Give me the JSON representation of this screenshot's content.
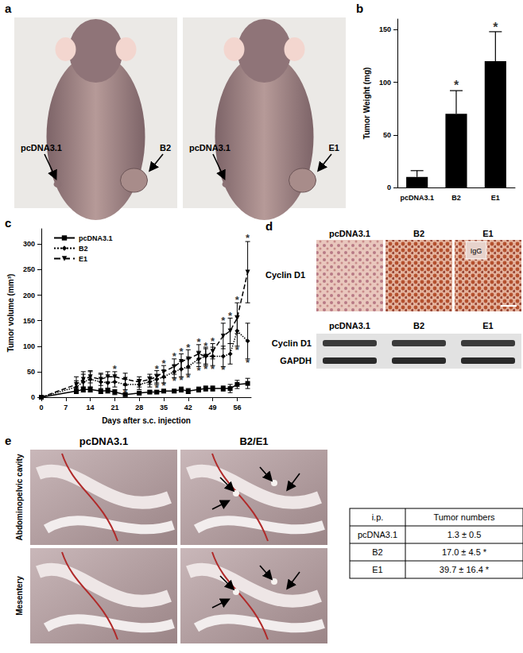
{
  "panel_labels": [
    "a",
    "b",
    "c",
    "d",
    "e"
  ],
  "panel_a": {
    "photos": [
      {
        "left": "pcDNA3.1",
        "right": "B2"
      },
      {
        "left": "pcDNA3.1",
        "right": "E1"
      }
    ]
  },
  "chart_data": [
    {
      "type": "bar",
      "y_label": "Tumor Weight (mg)",
      "categories": [
        "pcDNA3.1",
        "B2",
        "E1"
      ],
      "values": [
        10,
        70,
        120
      ],
      "errors": [
        6,
        22,
        28
      ],
      "color": "#000000",
      "ylim": [
        0,
        160
      ],
      "yticks": [
        0,
        50,
        100,
        150
      ],
      "grid": false,
      "annotations": [
        {
          "category": "B2",
          "y": 97,
          "text": "*"
        },
        {
          "category": "E1",
          "y": 152,
          "text": "*"
        }
      ]
    },
    {
      "type": "line",
      "x_label": "Days after s.c. injection",
      "y_label": "Tumor volume (mm³)",
      "x": [
        0,
        10,
        12,
        14,
        17,
        19,
        21,
        24,
        28,
        31,
        33,
        35,
        38,
        40,
        42,
        45,
        47,
        49,
        52,
        54,
        56,
        59
      ],
      "series": [
        {
          "name": "pcDNA3.1",
          "color": "#000000",
          "marker": "square",
          "line_style": "solid",
          "values": [
            0,
            12,
            15,
            15,
            12,
            13,
            10,
            5,
            8,
            10,
            10,
            12,
            12,
            15,
            12,
            15,
            17,
            17,
            17,
            17,
            25,
            27
          ],
          "errors": [
            0,
            5,
            5,
            5,
            5,
            5,
            5,
            3,
            3,
            3,
            3,
            3,
            3,
            5,
            5,
            5,
            5,
            5,
            5,
            8,
            8,
            10
          ]
        },
        {
          "name": "B2",
          "color": "#000000",
          "marker": "diamond",
          "line_style": "dotted",
          "values": [
            0,
            20,
            30,
            35,
            30,
            28,
            30,
            25,
            25,
            30,
            35,
            40,
            50,
            55,
            60,
            75,
            80,
            80,
            80,
            85,
            130,
            110
          ],
          "errors": [
            0,
            12,
            15,
            15,
            15,
            12,
            10,
            10,
            10,
            10,
            10,
            12,
            12,
            15,
            15,
            15,
            18,
            18,
            20,
            20,
            30,
            35
          ]
        },
        {
          "name": "E1",
          "color": "#000000",
          "marker": "triangle_down",
          "line_style": "dashed",
          "values": [
            0,
            25,
            35,
            40,
            35,
            40,
            40,
            35,
            30,
            35,
            40,
            50,
            60,
            70,
            75,
            85,
            80,
            90,
            120,
            130,
            155,
            245
          ],
          "errors": [
            0,
            15,
            15,
            12,
            12,
            10,
            10,
            12,
            10,
            10,
            12,
            12,
            15,
            15,
            18,
            18,
            15,
            15,
            25,
            25,
            30,
            60
          ]
        }
      ],
      "xlim": [
        0,
        60
      ],
      "xticks": [
        0,
        7,
        14,
        21,
        28,
        35,
        42,
        49,
        56
      ],
      "ylim": [
        0,
        330
      ],
      "yticks": [
        0,
        50,
        100,
        150,
        200,
        250,
        300
      ],
      "grid": false,
      "legend": "upper left",
      "annotations": [
        {
          "x": 21,
          "y": 55,
          "text": "*"
        },
        {
          "x": 33,
          "y": 56,
          "text": "*"
        },
        {
          "x": 35,
          "y": 66,
          "text": "*"
        },
        {
          "x": 38,
          "y": 80,
          "text": "*"
        },
        {
          "x": 40,
          "y": 90,
          "text": "*"
        },
        {
          "x": 42,
          "y": 98,
          "text": "*"
        },
        {
          "x": 45,
          "y": 108,
          "text": "*"
        },
        {
          "x": 47,
          "y": 100,
          "text": "*"
        },
        {
          "x": 49,
          "y": 110,
          "text": "*"
        },
        {
          "x": 52,
          "y": 150,
          "text": "*"
        },
        {
          "x": 54,
          "y": 160,
          "text": "*"
        },
        {
          "x": 56,
          "y": 190,
          "text": "*"
        },
        {
          "x": 59,
          "y": 312,
          "text": "*"
        },
        {
          "x": 24,
          "y": 8,
          "text": "*"
        },
        {
          "x": 33,
          "y": 18,
          "text": "*"
        },
        {
          "x": 35,
          "y": 22,
          "text": "*"
        },
        {
          "x": 38,
          "y": 32,
          "text": "*"
        },
        {
          "x": 40,
          "y": 34,
          "text": "*"
        },
        {
          "x": 42,
          "y": 38,
          "text": "*"
        },
        {
          "x": 45,
          "y": 52,
          "text": "*"
        },
        {
          "x": 47,
          "y": 56,
          "text": "*"
        },
        {
          "x": 49,
          "y": 56,
          "text": "*"
        },
        {
          "x": 52,
          "y": 54,
          "text": "*"
        },
        {
          "x": 56,
          "y": 92,
          "text": "*"
        },
        {
          "x": 59,
          "y": 68,
          "text": "*"
        }
      ]
    }
  ],
  "panel_d": {
    "ihc_label": "Cyclin D1",
    "lanes": [
      "pcDNA3.1",
      "B2",
      "E1"
    ],
    "inset": "IgG",
    "blot_rows": [
      "Cyclin D1",
      "GAPDH"
    ],
    "blot_lanes": [
      "pcDNA3.1",
      "B2",
      "E1"
    ]
  },
  "panel_e": {
    "columns": [
      "pcDNA3.1",
      "B2/E1"
    ],
    "rows": [
      "Abdominopelvic cavity",
      "Mesentery"
    ],
    "table": {
      "header": [
        "i.p.",
        "Tumor numbers"
      ],
      "rows": [
        [
          "pcDNA3.1",
          "1.3 ± 0.5"
        ],
        [
          "B2",
          "17.0 ± 4.5 *"
        ],
        [
          "E1",
          "39.7 ± 16.4 *"
        ]
      ]
    }
  }
}
